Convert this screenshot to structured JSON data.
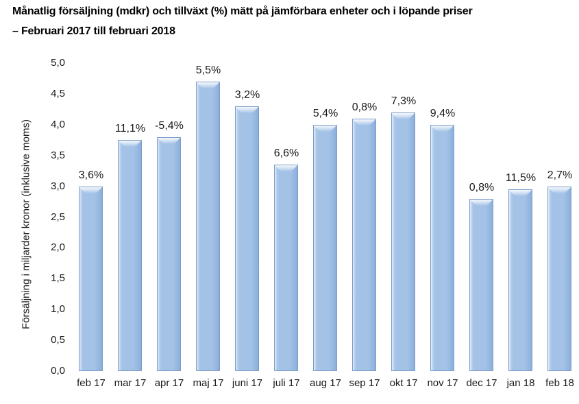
{
  "header": {
    "title_line1": "Månatlig försäljning (mdkr) och tillväxt (%) mätt på jämförbara enheter och i löpande priser",
    "title_line2": "– Februari 2017 till februari 2018"
  },
  "chart_data": {
    "type": "bar",
    "title": "Månatlig försäljning (mdkr) och tillväxt (%) mätt på jämförbara enheter och i löpande priser – Februari 2017 till februari 2018",
    "categories": [
      "feb 17",
      "mar 17",
      "apr 17",
      "maj 17",
      "juni 17",
      "juli 17",
      "aug 17",
      "sep 17",
      "okt 17",
      "nov 17",
      "dec 17",
      "jan 18",
      "feb 18"
    ],
    "values": [
      3.0,
      3.75,
      3.8,
      4.7,
      4.3,
      3.35,
      4.0,
      4.1,
      4.2,
      4.0,
      2.8,
      2.95,
      3.0
    ],
    "growth_labels": [
      "3,6%",
      "11,1%",
      "-5,4%",
      "5,5%",
      "3,2%",
      "6,6%",
      "5,4%",
      "0,8%",
      "7,3%",
      "9,4%",
      "0,8%",
      "11,5%",
      "2,7%"
    ],
    "xlabel": "",
    "ylabel": "Försäljning i miljarder kronor (inklusive moms)",
    "ylim": [
      0,
      5
    ],
    "ytick_step": 0.5,
    "ytick_labels_top_to_bottom": [
      "5,0",
      "4,5",
      "4,0",
      "3,5",
      "3,0",
      "2,5",
      "2,0",
      "1,5",
      "1,0",
      "0,5",
      "0,0"
    ],
    "grid": false,
    "legend": false,
    "colors": {
      "bar_fill": "#a3c2e6",
      "bar_fill_light": "#c2d7f0",
      "bar_fill_dark": "#8cafdb",
      "bar_border": "#7c9cc8",
      "text": "#1a1a1a"
    }
  }
}
